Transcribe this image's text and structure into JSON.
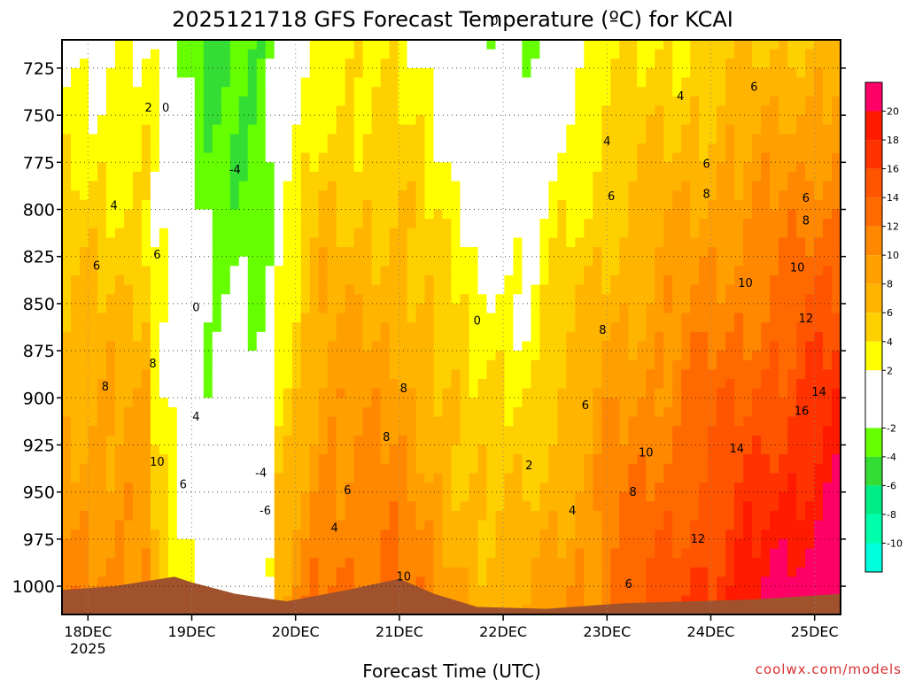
{
  "title": "2025121718 GFS Forecast Temperature (ºC) for KCAI",
  "xlabel": "Forecast Time (UTC)",
  "credit": "coolwx.com/models",
  "chart_data": {
    "type": "heatmap",
    "title": "2025121718 GFS Forecast Temperature (ºC) for KCAI",
    "xlabel": "Forecast Time (UTC)",
    "ylabel": "",
    "y_scale": "pressure (hPa), inverted",
    "ylim": [
      1015,
      710
    ],
    "xlim": [
      "2025-12-17T18:00Z",
      "2025-12-25T06:00Z"
    ],
    "x_ticks": [
      {
        "label": "18DEC",
        "sub": "2025",
        "time": "2025-12-18T00:00Z"
      },
      {
        "label": "19DEC",
        "sub": "",
        "time": "2025-12-19T00:00Z"
      },
      {
        "label": "20DEC",
        "sub": "",
        "time": "2025-12-20T00:00Z"
      },
      {
        "label": "21DEC",
        "sub": "",
        "time": "2025-12-21T00:00Z"
      },
      {
        "label": "22DEC",
        "sub": "",
        "time": "2025-12-22T00:00Z"
      },
      {
        "label": "23DEC",
        "sub": "",
        "time": "2025-12-23T00:00Z"
      },
      {
        "label": "24DEC",
        "sub": "",
        "time": "2025-12-24T00:00Z"
      },
      {
        "label": "25DEC",
        "sub": "",
        "time": "2025-12-25T00:00Z"
      }
    ],
    "y_ticks": [
      725,
      750,
      775,
      800,
      825,
      850,
      875,
      900,
      925,
      950,
      975,
      1000
    ],
    "grid": true,
    "colorbar": {
      "labels": [
        "20",
        "18",
        "16",
        "14",
        "12",
        "10",
        "8",
        "6",
        "4",
        "2",
        "-2",
        "-4",
        "-6",
        "-8",
        "-10"
      ],
      "label_values": [
        20,
        18,
        16,
        14,
        12,
        10,
        8,
        6,
        4,
        2,
        -2,
        -4,
        -6,
        -8,
        -10
      ],
      "bins": [
        {
          "min": 20,
          "max": 22,
          "color": "#ff0066"
        },
        {
          "min": 18,
          "max": 20,
          "color": "#ff1a00"
        },
        {
          "min": 16,
          "max": 18,
          "color": "#ff3300"
        },
        {
          "min": 14,
          "max": 16,
          "color": "#ff5500"
        },
        {
          "min": 12,
          "max": 14,
          "color": "#ff6a00"
        },
        {
          "min": 10,
          "max": 12,
          "color": "#ff8800"
        },
        {
          "min": 8,
          "max": 10,
          "color": "#ffa000"
        },
        {
          "min": 6,
          "max": 8,
          "color": "#ffb400"
        },
        {
          "min": 4,
          "max": 6,
          "color": "#ffd000"
        },
        {
          "min": 2,
          "max": 4,
          "color": "#ffff00"
        },
        {
          "min": -2,
          "max": 2,
          "color": "#ffffff"
        },
        {
          "min": -4,
          "max": -2,
          "color": "#66ff00"
        },
        {
          "min": -6,
          "max": -4,
          "color": "#33dd33"
        },
        {
          "min": -8,
          "max": -6,
          "color": "#00ee88"
        },
        {
          "min": -10,
          "max": -8,
          "color": "#00ffaa"
        },
        {
          "min": -12,
          "max": -10,
          "color": "#00ffdd"
        }
      ]
    },
    "terrain_color": "#a0522d",
    "contour_labels": [
      {
        "text": "2",
        "time": "2025-12-18T14:00Z",
        "p": 748
      },
      {
        "text": "0",
        "time": "2025-12-18T18:00Z",
        "p": 748
      },
      {
        "text": "4",
        "time": "2025-12-18T06:00Z",
        "p": 800
      },
      {
        "text": "6",
        "time": "2025-12-18T02:00Z",
        "p": 832
      },
      {
        "text": "6",
        "time": "2025-12-18T16:00Z",
        "p": 826
      },
      {
        "text": "8",
        "time": "2025-12-18T04:00Z",
        "p": 896
      },
      {
        "text": "8",
        "time": "2025-12-18T15:00Z",
        "p": 884
      },
      {
        "text": "10",
        "time": "2025-12-18T16:00Z",
        "p": 936
      },
      {
        "text": "6",
        "time": "2025-12-18T22:00Z",
        "p": 948
      },
      {
        "text": "4",
        "time": "2025-12-19T01:00Z",
        "p": 912
      },
      {
        "text": "0",
        "time": "2025-12-19T01:00Z",
        "p": 854
      },
      {
        "text": "-4",
        "time": "2025-12-19T10:00Z",
        "p": 781
      },
      {
        "text": "-4",
        "time": "2025-12-19T16:00Z",
        "p": 942
      },
      {
        "text": "-6",
        "time": "2025-12-19T17:00Z",
        "p": 962
      },
      {
        "text": "8",
        "time": "2025-12-20T21:00Z",
        "p": 923
      },
      {
        "text": "8",
        "time": "2025-12-21T01:00Z",
        "p": 897
      },
      {
        "text": "6",
        "time": "2025-12-20T12:00Z",
        "p": 951
      },
      {
        "text": "4",
        "time": "2025-12-20T09:00Z",
        "p": 971
      },
      {
        "text": "10",
        "time": "2025-12-21T01:00Z",
        "p": 997
      },
      {
        "text": "0",
        "time": "2025-12-21T22:00Z",
        "p": 702
      },
      {
        "text": "0",
        "time": "2025-12-21T18:00Z",
        "p": 861
      },
      {
        "text": "2",
        "time": "2025-12-22T06:00Z",
        "p": 938
      },
      {
        "text": "4",
        "time": "2025-12-22T16:00Z",
        "p": 962
      },
      {
        "text": "6",
        "time": "2025-12-22T19:00Z",
        "p": 906
      },
      {
        "text": "6",
        "time": "2025-12-23T05:00Z",
        "p": 1001
      },
      {
        "text": "8",
        "time": "2025-12-22T23:00Z",
        "p": 866
      },
      {
        "text": "8",
        "time": "2025-12-23T06:00Z",
        "p": 952
      },
      {
        "text": "10",
        "time": "2025-12-23T09:00Z",
        "p": 931
      },
      {
        "text": "12",
        "time": "2025-12-23T21:00Z",
        "p": 977
      },
      {
        "text": "14",
        "time": "2025-12-24T06:00Z",
        "p": 929
      },
      {
        "text": "16",
        "time": "2025-12-24T21:00Z",
        "p": 909
      },
      {
        "text": "14",
        "time": "2025-12-25T01:00Z",
        "p": 899
      },
      {
        "text": "12",
        "time": "2025-12-24T22:00Z",
        "p": 860
      },
      {
        "text": "10",
        "time": "2025-12-24T08:00Z",
        "p": 841
      },
      {
        "text": "10",
        "time": "2025-12-24T20:00Z",
        "p": 833
      },
      {
        "text": "8",
        "time": "2025-12-24T22:00Z",
        "p": 808
      },
      {
        "text": "8",
        "time": "2025-12-23T23:00Z",
        "p": 794
      },
      {
        "text": "6",
        "time": "2025-12-23T01:00Z",
        "p": 795
      },
      {
        "text": "6",
        "time": "2025-12-23T23:00Z",
        "p": 778
      },
      {
        "text": "6",
        "time": "2025-12-24T22:00Z",
        "p": 796
      },
      {
        "text": "4",
        "time": "2025-12-23T00:00Z",
        "p": 766
      },
      {
        "text": "4",
        "time": "2025-12-23T17:00Z",
        "p": 742
      },
      {
        "text": "6",
        "time": "2025-12-24T10:00Z",
        "p": 737
      }
    ]
  }
}
